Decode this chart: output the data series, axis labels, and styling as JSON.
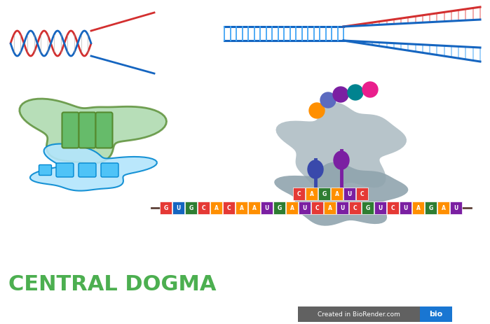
{
  "title": "CENTRAL DOGMA",
  "title_color": "#4caf50",
  "title_fontsize": 22,
  "bg_color": "#ffffff",
  "dna_color_blue": "#1565c0",
  "dna_color_red": "#d32f2f",
  "codon_letters": [
    "G",
    "U",
    "G",
    "C",
    "A",
    "C",
    "A",
    "A",
    "U",
    "G",
    "A",
    "U",
    "C",
    "A",
    "U",
    "C",
    "G",
    "U",
    "C",
    "U",
    "A",
    "G",
    "A",
    "U"
  ],
  "codon_colors": [
    "#e53935",
    "#1565c0",
    "#2e7d32",
    "#e53935",
    "#ff8f00",
    "#e53935",
    "#ff8f00",
    "#ff8f00",
    "#7b1fa2",
    "#2e7d32",
    "#ff8f00",
    "#7b1fa2",
    "#e53935",
    "#ff8f00",
    "#7b1fa2",
    "#e53935",
    "#2e7d32",
    "#7b1fa2",
    "#e53935",
    "#7b1fa2",
    "#ff8f00",
    "#2e7d32",
    "#ff8f00",
    "#7b1fa2"
  ],
  "upper_codon_letters": [
    "C",
    "A",
    "G",
    "A",
    "U",
    "C"
  ],
  "upper_codon_colors": [
    "#e53935",
    "#ff8f00",
    "#2e7d32",
    "#ff8f00",
    "#7b1fa2",
    "#e53935"
  ],
  "ribosome_color": "#b0bec5",
  "ribosome_dark": "#90a4ae",
  "tRNA_stem_color": "#3949ab",
  "tRNA_stem2_color": "#7b1fa2",
  "aa_colors": [
    "#ff8f00",
    "#5c6bc0",
    "#7b1fa2",
    "#00838f",
    "#e91e8c"
  ],
  "chloroplast_green_fill": "#a5d6a7",
  "chloroplast_green_stroke": "#558b2f",
  "thylakoid_color": "#66bb6a",
  "er_blue_fill": "#b3e5fc",
  "er_blue_stroke": "#0288d1",
  "er_rect_color": "#4fc3f7",
  "biorend_gray": "#616161",
  "biorend_blue": "#1976d2",
  "footer_text": "Created in BioRender.com",
  "bio_text": "bio"
}
